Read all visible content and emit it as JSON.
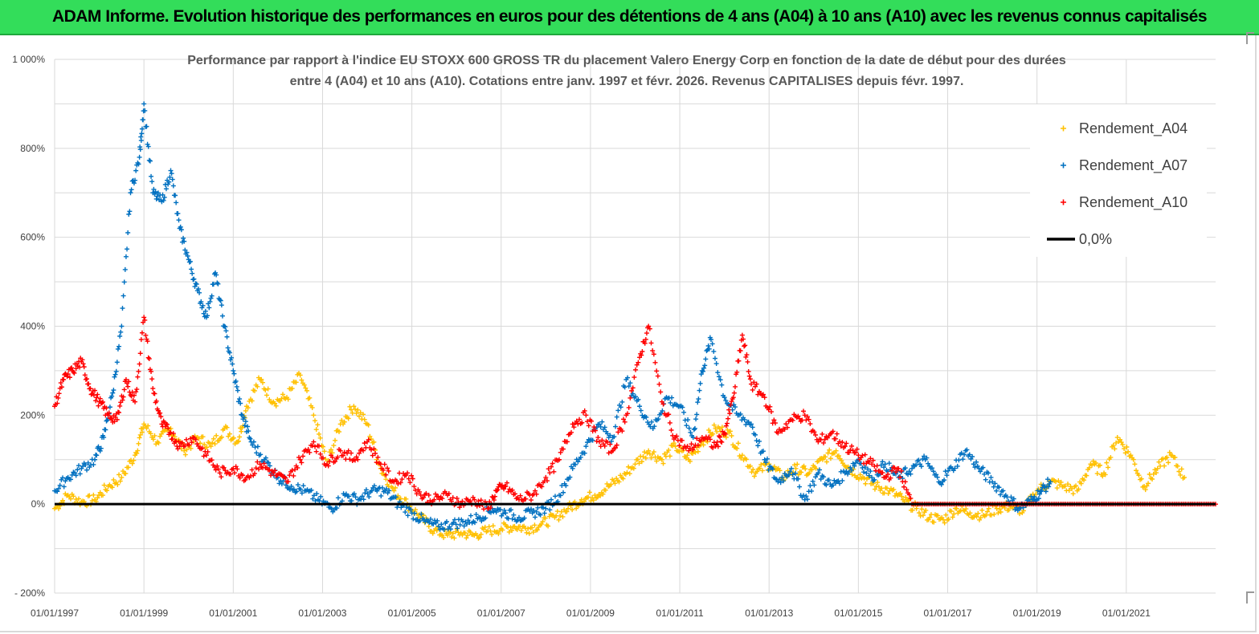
{
  "banner": {
    "title": "ADAM Informe. Evolution historique des performances en euros pour des détentions de 4 ans (A04) à 10 ans (A10) avec les revenus connus capitalisés"
  },
  "chart_data": {
    "type": "scatter",
    "title_line1": "Performance par rapport à l'indice EU STOXX 600 GROSS TR  du placement Valero Energy Corp en fonction de la date de début pour des durées",
    "title_line2": "entre 4 (A04) et 10 ans (A10). Cotations entre janv. 1997 et févr. 2026. Revenus CAPITALISES depuis févr. 1997.",
    "xlim": [
      1997.0,
      2023.0
    ],
    "ylim": [
      -200,
      1000
    ],
    "y_ticks": [
      {
        "value": 1000,
        "label": "1 000%"
      },
      {
        "value": 800,
        "label": "800%"
      },
      {
        "value": 600,
        "label": "600%"
      },
      {
        "value": 400,
        "label": "400%"
      },
      {
        "value": 200,
        "label": "200%"
      },
      {
        "value": 0,
        "label": "0%"
      },
      {
        "value": -200,
        "label": "- 200%"
      }
    ],
    "x_ticks": [
      {
        "value": 1997.0,
        "label": "01/01/1997"
      },
      {
        "value": 1999.0,
        "label": "01/01/1999"
      },
      {
        "value": 2001.0,
        "label": "01/01/2001"
      },
      {
        "value": 2003.0,
        "label": "01/01/2003"
      },
      {
        "value": 2005.0,
        "label": "01/01/2005"
      },
      {
        "value": 2007.0,
        "label": "01/01/2007"
      },
      {
        "value": 2009.0,
        "label": "01/01/2009"
      },
      {
        "value": 2011.0,
        "label": "01/01/2011"
      },
      {
        "value": 2013.0,
        "label": "01/01/2013"
      },
      {
        "value": 2015.0,
        "label": "01/01/2015"
      },
      {
        "value": 2017.0,
        "label": "01/01/2017"
      },
      {
        "value": 2019.0,
        "label": "01/01/2019"
      },
      {
        "value": 2021.0,
        "label": "01/01/2021"
      }
    ],
    "gridlines": true,
    "legend_position": "top-right",
    "series": [
      {
        "name": "Rendement_A04",
        "color": "#ffc000",
        "marker": "plus",
        "points": [
          [
            1997.0,
            -10
          ],
          [
            1997.3,
            20
          ],
          [
            1997.6,
            5
          ],
          [
            1997.9,
            10
          ],
          [
            1998.2,
            40
          ],
          [
            1998.5,
            60
          ],
          [
            1998.8,
            110
          ],
          [
            1999.0,
            180
          ],
          [
            1999.3,
            140
          ],
          [
            1999.6,
            170
          ],
          [
            1999.9,
            120
          ],
          [
            2000.2,
            150
          ],
          [
            2000.5,
            130
          ],
          [
            2000.8,
            170
          ],
          [
            2001.1,
            140
          ],
          [
            2001.3,
            220
          ],
          [
            2001.6,
            280
          ],
          [
            2001.9,
            230
          ],
          [
            2002.2,
            240
          ],
          [
            2002.5,
            290
          ],
          [
            2002.8,
            200
          ],
          [
            2003.1,
            90
          ],
          [
            2003.4,
            180
          ],
          [
            2003.7,
            220
          ],
          [
            2004.0,
            180
          ],
          [
            2004.3,
            80
          ],
          [
            2004.6,
            30
          ],
          [
            2004.9,
            0
          ],
          [
            2005.2,
            -30
          ],
          [
            2005.5,
            -60
          ],
          [
            2005.8,
            -70
          ],
          [
            2006.1,
            -65
          ],
          [
            2006.4,
            -70
          ],
          [
            2006.7,
            -60
          ],
          [
            2007.0,
            -55
          ],
          [
            2007.3,
            -50
          ],
          [
            2007.6,
            -55
          ],
          [
            2007.9,
            -45
          ],
          [
            2008.2,
            -30
          ],
          [
            2008.5,
            -10
          ],
          [
            2008.8,
            10
          ],
          [
            2009.1,
            20
          ],
          [
            2009.4,
            40
          ],
          [
            2009.7,
            60
          ],
          [
            2010.0,
            90
          ],
          [
            2010.3,
            120
          ],
          [
            2010.6,
            100
          ],
          [
            2010.9,
            130
          ],
          [
            2011.2,
            100
          ],
          [
            2011.5,
            140
          ],
          [
            2011.8,
            170
          ],
          [
            2012.1,
            160
          ],
          [
            2012.4,
            110
          ],
          [
            2012.7,
            70
          ],
          [
            2013.0,
            90
          ],
          [
            2013.3,
            60
          ],
          [
            2013.6,
            80
          ],
          [
            2013.9,
            70
          ],
          [
            2014.2,
            100
          ],
          [
            2014.5,
            120
          ],
          [
            2014.8,
            80
          ],
          [
            2015.1,
            60
          ],
          [
            2015.4,
            40
          ],
          [
            2015.7,
            30
          ],
          [
            2016.0,
            10
          ],
          [
            2016.3,
            -10
          ],
          [
            2016.6,
            -30
          ],
          [
            2016.9,
            -35
          ],
          [
            2017.2,
            -10
          ],
          [
            2017.5,
            -20
          ],
          [
            2017.8,
            -25
          ],
          [
            2018.1,
            -10
          ],
          [
            2018.4,
            -5
          ],
          [
            2018.7,
            -15
          ],
          [
            2019.0,
            30
          ],
          [
            2019.3,
            50
          ],
          [
            2019.6,
            40
          ],
          [
            2019.9,
            30
          ],
          [
            2020.2,
            90
          ],
          [
            2020.5,
            70
          ],
          [
            2020.8,
            150
          ],
          [
            2021.1,
            110
          ],
          [
            2021.4,
            40
          ],
          [
            2021.7,
            80
          ],
          [
            2022.0,
            110
          ],
          [
            2022.3,
            60
          ]
        ]
      },
      {
        "name": "Rendement_A07",
        "color": "#0070c0",
        "marker": "plus",
        "points": [
          [
            1997.0,
            30
          ],
          [
            1997.3,
            60
          ],
          [
            1997.6,
            80
          ],
          [
            1997.9,
            100
          ],
          [
            1998.1,
            150
          ],
          [
            1998.3,
            250
          ],
          [
            1998.5,
            400
          ],
          [
            1998.7,
            700
          ],
          [
            1998.9,
            780
          ],
          [
            1999.0,
            900
          ],
          [
            1999.2,
            700
          ],
          [
            1999.4,
            680
          ],
          [
            1999.6,
            750
          ],
          [
            1999.8,
            620
          ],
          [
            2000.0,
            550
          ],
          [
            2000.2,
            480
          ],
          [
            2000.4,
            420
          ],
          [
            2000.6,
            520
          ],
          [
            2000.8,
            400
          ],
          [
            2001.0,
            300
          ],
          [
            2001.2,
            200
          ],
          [
            2001.4,
            140
          ],
          [
            2001.7,
            100
          ],
          [
            2002.0,
            60
          ],
          [
            2002.3,
            40
          ],
          [
            2002.6,
            30
          ],
          [
            2002.9,
            10
          ],
          [
            2003.2,
            -10
          ],
          [
            2003.5,
            20
          ],
          [
            2003.8,
            10
          ],
          [
            2004.1,
            30
          ],
          [
            2004.4,
            30
          ],
          [
            2004.7,
            0
          ],
          [
            2005.0,
            -20
          ],
          [
            2005.3,
            -40
          ],
          [
            2005.6,
            -50
          ],
          [
            2005.9,
            -45
          ],
          [
            2006.2,
            -40
          ],
          [
            2006.5,
            -30
          ],
          [
            2006.8,
            -10
          ],
          [
            2007.1,
            -20
          ],
          [
            2007.4,
            -30
          ],
          [
            2007.7,
            -20
          ],
          [
            2008.0,
            -10
          ],
          [
            2008.3,
            20
          ],
          [
            2008.6,
            80
          ],
          [
            2008.9,
            130
          ],
          [
            2009.2,
            180
          ],
          [
            2009.5,
            150
          ],
          [
            2009.8,
            280
          ],
          [
            2010.1,
            220
          ],
          [
            2010.4,
            170
          ],
          [
            2010.7,
            240
          ],
          [
            2011.0,
            220
          ],
          [
            2011.3,
            150
          ],
          [
            2011.5,
            300
          ],
          [
            2011.7,
            370
          ],
          [
            2012.0,
            240
          ],
          [
            2012.3,
            200
          ],
          [
            2012.6,
            180
          ],
          [
            2012.9,
            100
          ],
          [
            2013.2,
            50
          ],
          [
            2013.5,
            80
          ],
          [
            2013.8,
            10
          ],
          [
            2014.1,
            70
          ],
          [
            2014.4,
            40
          ],
          [
            2014.7,
            70
          ],
          [
            2015.0,
            100
          ],
          [
            2015.3,
            60
          ],
          [
            2015.6,
            90
          ],
          [
            2015.9,
            60
          ],
          [
            2016.2,
            80
          ],
          [
            2016.5,
            100
          ],
          [
            2016.8,
            50
          ],
          [
            2017.1,
            80
          ],
          [
            2017.4,
            120
          ],
          [
            2017.7,
            80
          ],
          [
            2018.0,
            50
          ],
          [
            2018.3,
            20
          ],
          [
            2018.6,
            -10
          ],
          [
            2018.9,
            10
          ],
          [
            2019.1,
            30
          ],
          [
            2019.3,
            50
          ]
        ]
      },
      {
        "name": "Rendement_A10",
        "color": "#ff0000",
        "marker": "plus",
        "points": [
          [
            1997.0,
            220
          ],
          [
            1997.2,
            280
          ],
          [
            1997.4,
            300
          ],
          [
            1997.6,
            320
          ],
          [
            1997.8,
            260
          ],
          [
            1998.0,
            230
          ],
          [
            1998.2,
            200
          ],
          [
            1998.4,
            190
          ],
          [
            1998.6,
            280
          ],
          [
            1998.8,
            230
          ],
          [
            1999.0,
            420
          ],
          [
            1999.2,
            260
          ],
          [
            1999.4,
            180
          ],
          [
            1999.6,
            160
          ],
          [
            1999.8,
            130
          ],
          [
            2000.1,
            150
          ],
          [
            2000.4,
            110
          ],
          [
            2000.7,
            70
          ],
          [
            2001.0,
            80
          ],
          [
            2001.3,
            60
          ],
          [
            2001.6,
            90
          ],
          [
            2001.9,
            70
          ],
          [
            2002.2,
            50
          ],
          [
            2002.5,
            100
          ],
          [
            2002.8,
            140
          ],
          [
            2003.1,
            90
          ],
          [
            2003.4,
            120
          ],
          [
            2003.7,
            100
          ],
          [
            2004.0,
            140
          ],
          [
            2004.3,
            90
          ],
          [
            2004.6,
            50
          ],
          [
            2004.9,
            70
          ],
          [
            2005.2,
            20
          ],
          [
            2005.5,
            10
          ],
          [
            2005.8,
            20
          ],
          [
            2006.1,
            0
          ],
          [
            2006.4,
            10
          ],
          [
            2006.7,
            -10
          ],
          [
            2006.9,
            30
          ],
          [
            2007.1,
            40
          ],
          [
            2007.4,
            10
          ],
          [
            2007.7,
            20
          ],
          [
            2008.0,
            60
          ],
          [
            2008.3,
            100
          ],
          [
            2008.6,
            180
          ],
          [
            2008.9,
            200
          ],
          [
            2009.2,
            140
          ],
          [
            2009.5,
            120
          ],
          [
            2009.8,
            200
          ],
          [
            2010.1,
            330
          ],
          [
            2010.3,
            400
          ],
          [
            2010.6,
            230
          ],
          [
            2010.9,
            150
          ],
          [
            2011.2,
            120
          ],
          [
            2011.5,
            150
          ],
          [
            2011.8,
            130
          ],
          [
            2012.0,
            160
          ],
          [
            2012.2,
            240
          ],
          [
            2012.4,
            380
          ],
          [
            2012.6,
            270
          ],
          [
            2012.9,
            240
          ],
          [
            2013.2,
            160
          ],
          [
            2013.5,
            190
          ],
          [
            2013.8,
            200
          ],
          [
            2014.1,
            140
          ],
          [
            2014.4,
            160
          ],
          [
            2014.7,
            130
          ],
          [
            2015.0,
            110
          ],
          [
            2015.3,
            90
          ],
          [
            2015.6,
            60
          ],
          [
            2015.9,
            80
          ],
          [
            2016.2,
            0
          ],
          [
            2016.6,
            0
          ],
          [
            2017.0,
            0
          ],
          [
            2017.4,
            0
          ],
          [
            2017.8,
            0
          ],
          [
            2018.2,
            0
          ],
          [
            2018.6,
            0
          ],
          [
            2019.0,
            0
          ],
          [
            2019.4,
            0
          ],
          [
            2019.8,
            0
          ],
          [
            2020.2,
            0
          ],
          [
            2020.6,
            0
          ],
          [
            2021.0,
            0
          ],
          [
            2021.4,
            0
          ],
          [
            2021.8,
            0
          ],
          [
            2022.2,
            0
          ],
          [
            2022.6,
            0
          ],
          [
            2023.0,
            0
          ]
        ]
      },
      {
        "name": "0,0%",
        "color": "#000000",
        "marker": "line",
        "points": [
          [
            1997.0,
            0
          ],
          [
            2023.0,
            0
          ]
        ]
      }
    ]
  }
}
